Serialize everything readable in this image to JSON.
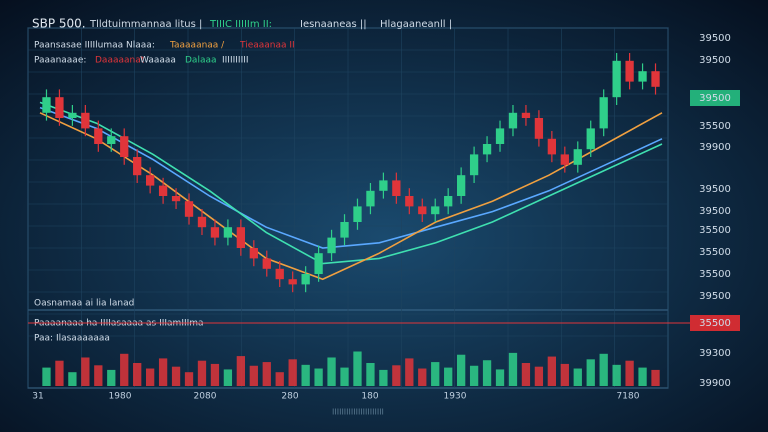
{
  "chart_data": {
    "type": "candlestick",
    "title": "SBP 500.",
    "header_texts": [
      "Tlldtuimmannaa litus |",
      "TIIIC IIIIIm II:",
      "Iesnaaneas ||",
      "Hlagaaneanll |"
    ],
    "legend_texts": [
      "Paansasae IIIIlumaa Nlaaa:",
      "Taaaaanaa /",
      "Tieaaanaa II"
    ],
    "legend_texts_2": [
      "Paaanaaae:",
      "Daaaaanat",
      "Waaaaa",
      "Dalaaa",
      "IIIIIIIIII"
    ],
    "lower_texts": [
      "Oasnamaa ai lia lanad",
      "Paaaanaaa ha IIIIasaaaa as IIIamIIIma",
      "Paa: Ilasaaaaaaa"
    ],
    "x_labels": [
      "31",
      "1980",
      "2080",
      "280",
      "180",
      "1930",
      "7180"
    ],
    "right_labels": [
      "39500",
      "39500",
      "39500",
      "35500",
      "39900",
      "39500",
      "39500",
      "35500",
      "35500",
      "35500",
      "39500",
      "35500",
      "39300",
      "39900"
    ],
    "footer": "IIIIIIIIIIIIIIIIIIIIII",
    "ylim": [
      0,
      100
    ],
    "up_color": "#2fcf8a",
    "down_color": "#e0353a",
    "open": [
      72,
      78,
      70,
      72,
      66,
      60,
      63,
      55,
      48,
      44,
      40,
      38,
      32,
      28,
      24,
      28,
      20,
      16,
      12,
      8,
      6,
      10,
      18,
      24,
      30,
      36,
      42,
      46,
      40,
      36,
      33,
      36,
      40,
      48,
      56,
      60,
      66,
      72,
      70,
      62,
      56,
      52,
      58,
      66,
      78,
      92,
      84,
      88
    ],
    "high": [
      81,
      81,
      75,
      75,
      69,
      66,
      66,
      58,
      51,
      47,
      43,
      41,
      35,
      31,
      31,
      31,
      23,
      19,
      15,
      11,
      13,
      21,
      27,
      33,
      39,
      45,
      49,
      49,
      43,
      39,
      39,
      43,
      51,
      59,
      63,
      69,
      75,
      75,
      73,
      65,
      59,
      61,
      69,
      81,
      95,
      95,
      91,
      91
    ],
    "low": [
      69,
      67,
      67,
      63,
      57,
      57,
      52,
      45,
      41,
      37,
      35,
      29,
      25,
      21,
      21,
      17,
      13,
      9,
      5,
      3,
      3,
      7,
      15,
      21,
      27,
      33,
      39,
      37,
      33,
      30,
      30,
      33,
      37,
      45,
      53,
      57,
      63,
      67,
      59,
      53,
      49,
      49,
      55,
      63,
      75,
      81,
      81,
      79
    ],
    "close": [
      78,
      70,
      72,
      66,
      60,
      63,
      55,
      48,
      44,
      40,
      38,
      32,
      28,
      24,
      28,
      20,
      16,
      12,
      8,
      6,
      10,
      18,
      24,
      30,
      36,
      42,
      46,
      40,
      36,
      33,
      36,
      40,
      48,
      56,
      60,
      66,
      72,
      70,
      62,
      56,
      52,
      58,
      66,
      78,
      92,
      84,
      88,
      82
    ],
    "volume_lim": [
      0,
      100
    ],
    "volume": [
      40,
      55,
      30,
      62,
      45,
      35,
      70,
      50,
      38,
      60,
      42,
      30,
      55,
      48,
      36,
      65,
      44,
      52,
      30,
      58,
      46,
      38,
      62,
      40,
      75,
      50,
      35,
      45,
      60,
      38,
      52,
      40,
      68,
      44,
      56,
      36,
      72,
      50,
      42,
      64,
      48,
      38,
      58,
      70,
      46,
      55,
      40,
      35
    ],
    "series": [
      {
        "name": "MA1",
        "color": "#5aa8ff",
        "values": [
          74,
          66,
          54,
          40,
          28,
          20,
          22,
          28,
          34,
          42,
          52,
          62
        ]
      },
      {
        "name": "MA2",
        "color": "#3fe0b0",
        "values": [
          76,
          68,
          56,
          42,
          26,
          14,
          16,
          22,
          30,
          40,
          50,
          60
        ]
      },
      {
        "name": "MA3",
        "color": "#f0a040",
        "values": [
          72,
          62,
          48,
          32,
          16,
          8,
          18,
          30,
          38,
          48,
          60,
          72
        ]
      }
    ]
  }
}
